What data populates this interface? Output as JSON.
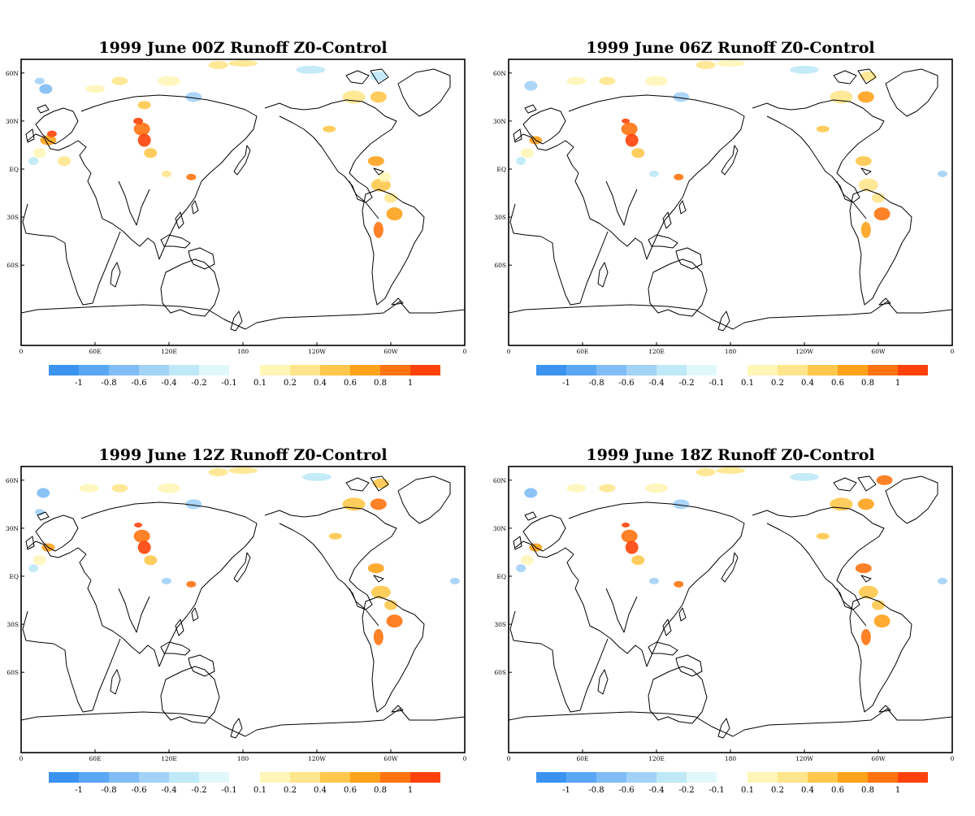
{
  "chart_data": [
    {
      "type": "heatmap",
      "title": "1999 June 00Z Runoff Z0-Control",
      "x_ticks": [
        "0",
        "60E",
        "120E",
        "180",
        "120W",
        "60W",
        "0"
      ],
      "y_ticks": [
        "60N",
        "30N",
        "EQ",
        "30S",
        "60S"
      ],
      "colorbar_ticks": [
        "-1",
        "-0.8",
        "-0.6",
        "-0.4",
        "-0.2",
        "-0.1",
        "0.1",
        "0.2",
        "0.4",
        "0.6",
        "0.8",
        "1"
      ]
    },
    {
      "type": "heatmap",
      "title": "1999 June 06Z Runoff Z0-Control",
      "x_ticks": [
        "0",
        "60E",
        "120E",
        "180",
        "120W",
        "60W",
        "0"
      ],
      "y_ticks": [
        "60N",
        "30N",
        "EQ",
        "30S",
        "60S"
      ],
      "colorbar_ticks": [
        "-1",
        "-0.8",
        "-0.6",
        "-0.4",
        "-0.2",
        "-0.1",
        "0.1",
        "0.2",
        "0.4",
        "0.6",
        "0.8",
        "1"
      ]
    },
    {
      "type": "heatmap",
      "title": "1999 June 12Z Runoff Z0-Control",
      "x_ticks": [
        "0",
        "60E",
        "120E",
        "180",
        "120W",
        "60W",
        "0"
      ],
      "y_ticks": [
        "60N",
        "30N",
        "EQ",
        "30S",
        "60S"
      ],
      "colorbar_ticks": [
        "-1",
        "-0.8",
        "-0.6",
        "-0.4",
        "-0.2",
        "-0.1",
        "0.1",
        "0.2",
        "0.4",
        "0.6",
        "0.8",
        "1"
      ]
    },
    {
      "type": "heatmap",
      "title": "1999 June 18Z Runoff Z0-Control",
      "x_ticks": [
        "0",
        "60E",
        "120E",
        "180",
        "120W",
        "60W",
        "0"
      ],
      "y_ticks": [
        "60N",
        "30N",
        "EQ",
        "30S",
        "60S"
      ],
      "colorbar_ticks": [
        "-1",
        "-0.8",
        "-0.6",
        "-0.4",
        "-0.2",
        "-0.1",
        "0.1",
        "0.2",
        "0.4",
        "0.6",
        "0.8",
        "1"
      ]
    }
  ],
  "colorbar": {
    "negative_colors": [
      "#3b93f0",
      "#5aa8f5",
      "#80bcf6",
      "#a3d2f7",
      "#bfe9f7",
      "#e1f8fa"
    ],
    "positive_colors": [
      "#fff6b8",
      "#ffe58c",
      "#ffc84d",
      "#ffa21c",
      "#ff7311",
      "#ff420a"
    ]
  }
}
